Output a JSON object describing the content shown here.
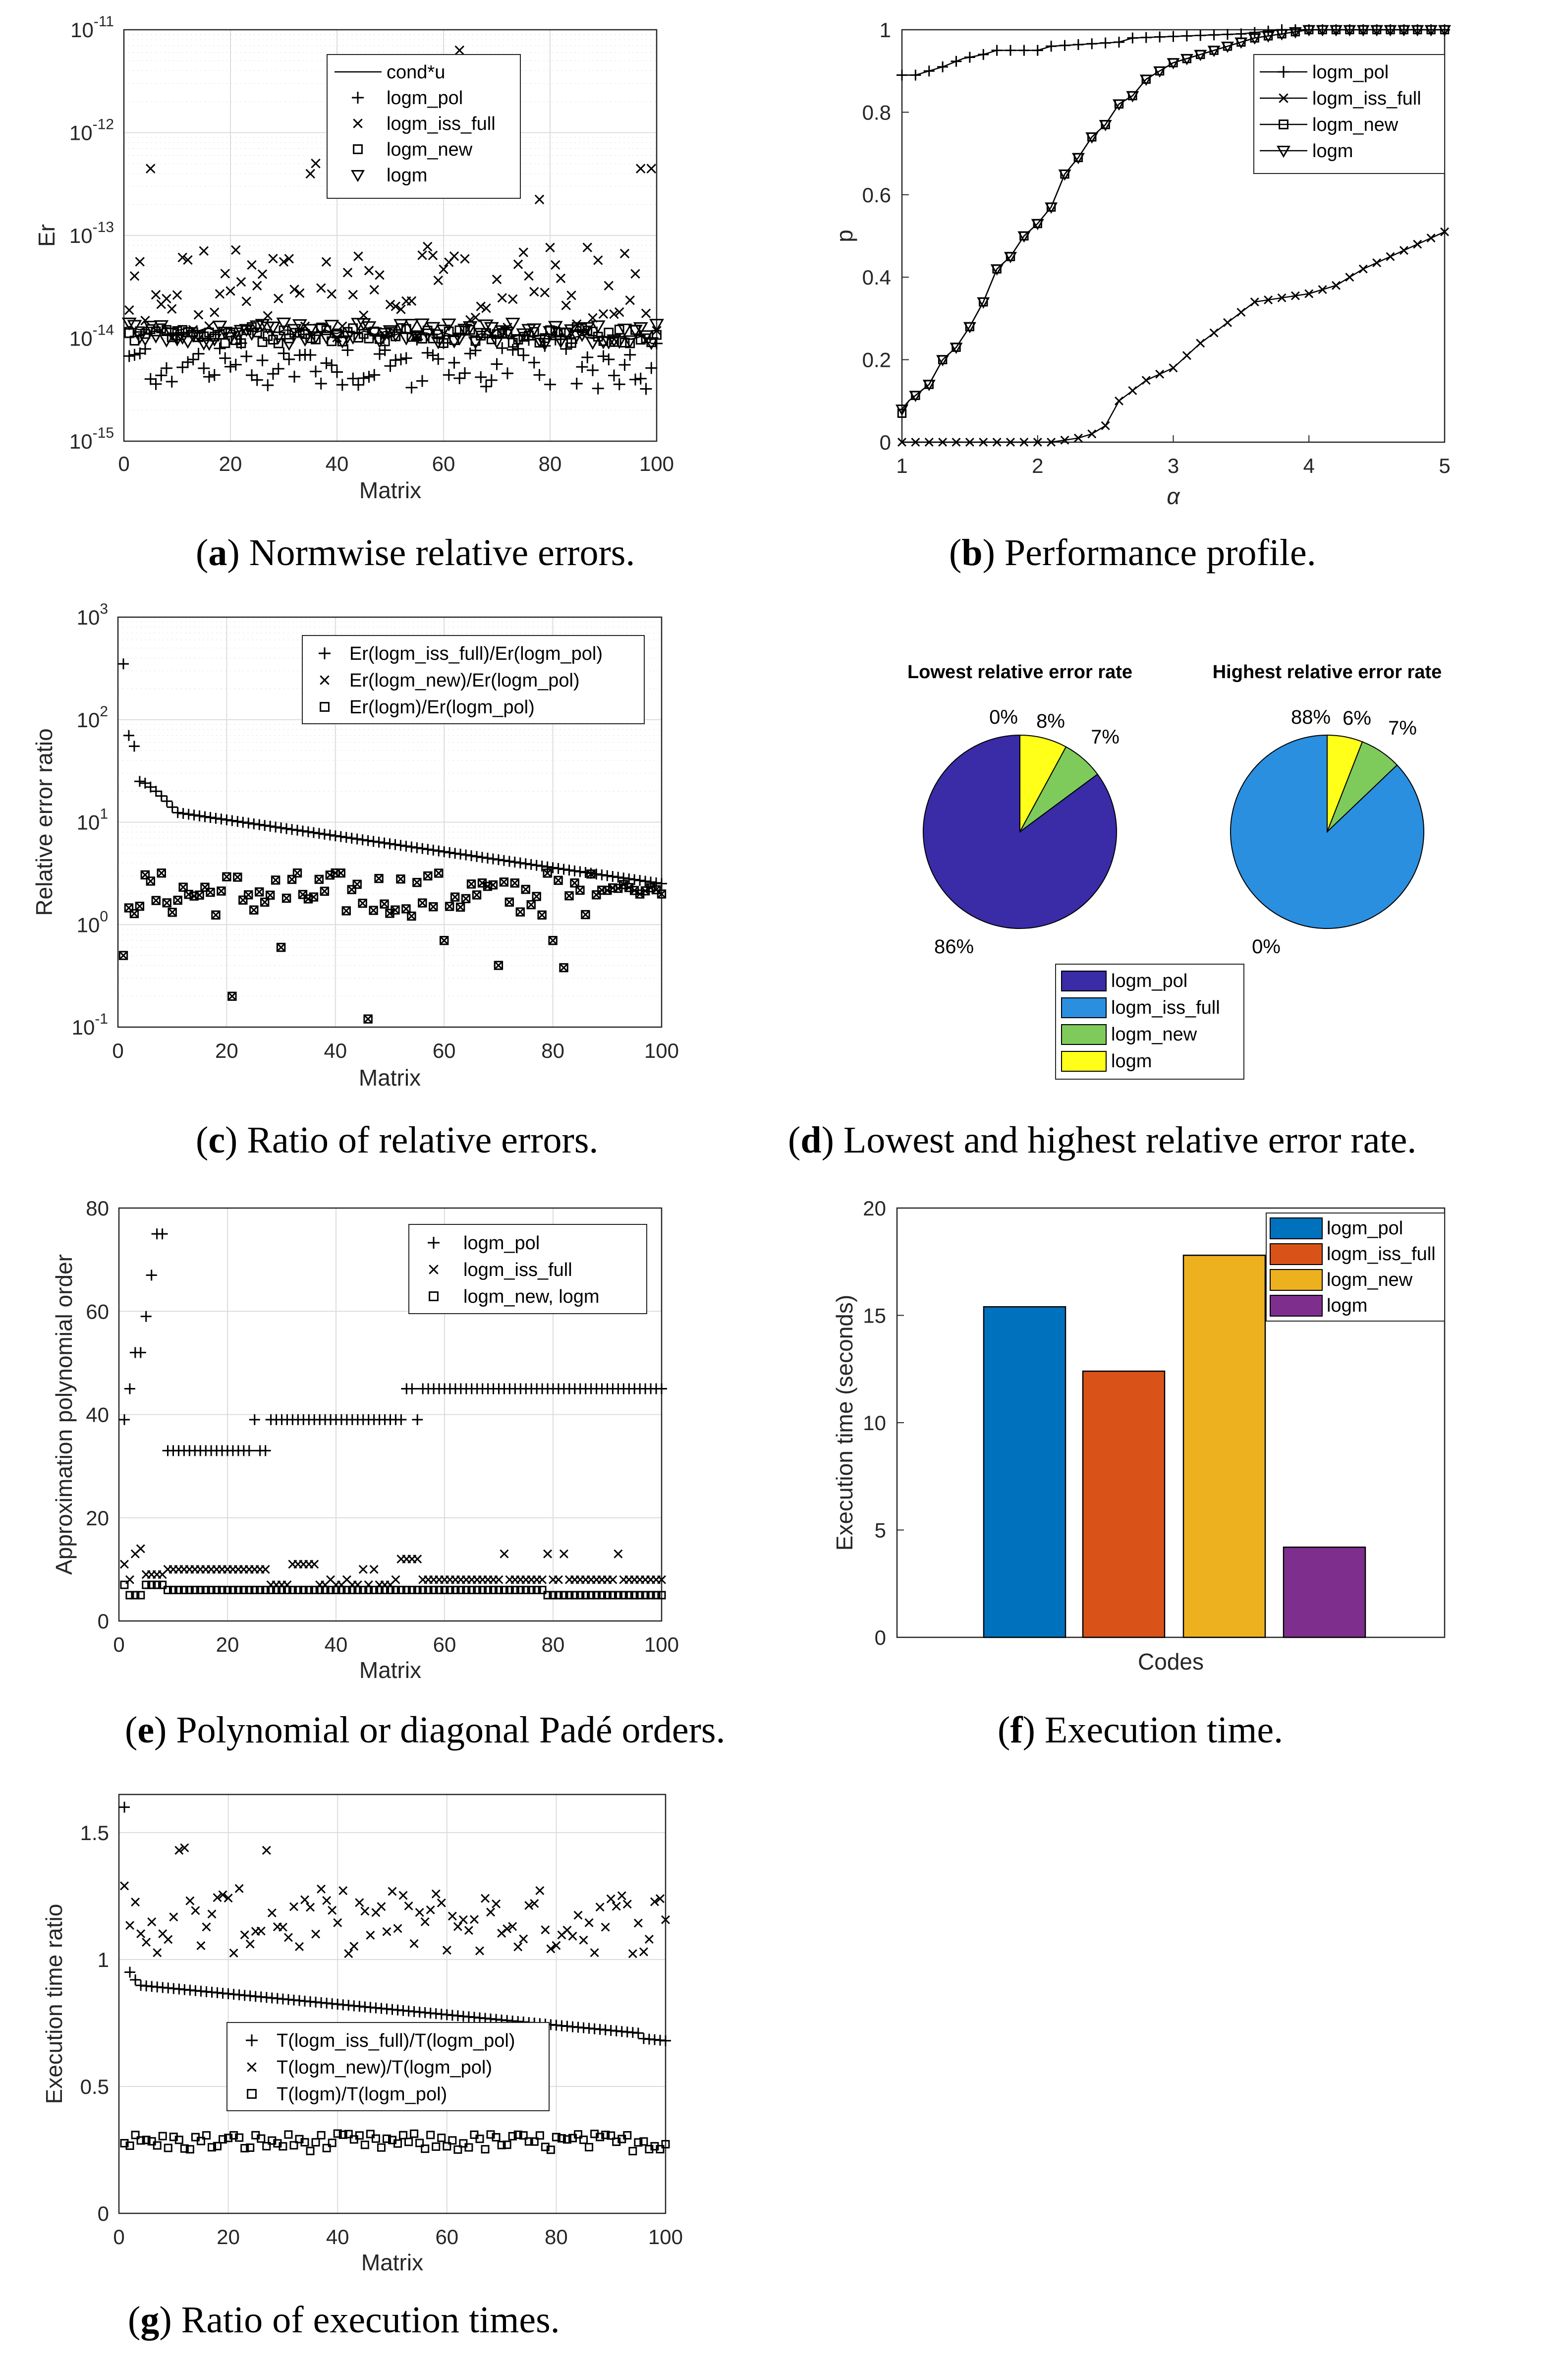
{
  "captions": [
    {
      "letter": "a",
      "text": ") Normwise relative errors."
    },
    {
      "letter": "b",
      "text": ") Performance profile."
    },
    {
      "letter": "c",
      "text": ") Ratio of relative errors."
    },
    {
      "letter": "d",
      "text": ") Lowest and highest relative error rate."
    },
    {
      "letter": "e",
      "text": ") Polynomial or diagonal Padé orders."
    },
    {
      "letter": "f",
      "text": ") Execution time."
    },
    {
      "letter": "g",
      "text": ") Ratio of execution times."
    }
  ],
  "chart_data": [
    {
      "id": "a",
      "type": "scatter",
      "xlabel": "Matrix",
      "ylabel": "Er",
      "xlim": [
        0,
        100
      ],
      "ylim_log10": [
        -15,
        -11
      ],
      "xticks": [
        "0",
        "20",
        "40",
        "60",
        "80",
        "100"
      ],
      "yticks_exp": [
        "-15",
        "-14",
        "-13",
        "-12",
        "-11"
      ],
      "legend": [
        "cond*u",
        "logm_pol",
        "logm_iss_full",
        "logm_new",
        "logm"
      ],
      "series": [
        {
          "name": "cond*u",
          "marker": "line",
          "log10_level_start": -13.9,
          "log10_level_end": -14.0,
          "log10_spread": 0.05
        },
        {
          "name": "logm_pol",
          "marker": "+",
          "log10_level": -14.25,
          "log10_spread": 0.25
        },
        {
          "name": "logm_iss_full",
          "marker": "x",
          "log10_level": -13.55,
          "log10_spread": 0.45,
          "outliers": [
            {
              "x": 5,
              "log10": -12.35
            },
            {
              "x": 35,
              "log10": -12.4
            },
            {
              "x": 36,
              "log10": -12.3
            },
            {
              "x": 63,
              "log10": -11.2
            },
            {
              "x": 78,
              "log10": -12.65
            },
            {
              "x": 97,
              "log10": -12.35
            },
            {
              "x": 99,
              "log10": -12.35
            }
          ]
        },
        {
          "name": "logm_new",
          "marker": "square",
          "log10_level": -13.97,
          "log10_spread": 0.08
        },
        {
          "name": "logm",
          "marker": "triangle-down",
          "log10_level": -13.95,
          "log10_spread": 0.1
        }
      ]
    },
    {
      "id": "b",
      "type": "line",
      "xlabel": "α",
      "ylabel": "p",
      "xlim": [
        1,
        5
      ],
      "ylim": [
        0,
        1
      ],
      "xticks": [
        "1",
        "2",
        "3",
        "4",
        "5"
      ],
      "yticks": [
        "0",
        "0.2",
        "0.4",
        "0.6",
        "0.8",
        "1"
      ],
      "legend": [
        "logm_pol",
        "logm_iss_full",
        "logm_new",
        "logm"
      ],
      "series": [
        {
          "name": "logm_pol",
          "marker": "+",
          "points": [
            [
              1,
              0.89
            ],
            [
              1.1,
              0.89
            ],
            [
              1.2,
              0.9
            ],
            [
              1.3,
              0.91
            ],
            [
              1.45,
              0.93
            ],
            [
              1.6,
              0.94
            ],
            [
              1.7,
              0.95
            ],
            [
              2.0,
              0.95
            ],
            [
              2.1,
              0.96
            ],
            [
              2.6,
              0.97
            ],
            [
              2.7,
              0.98
            ],
            [
              3.5,
              0.99
            ],
            [
              3.8,
              1
            ],
            [
              5,
              1
            ]
          ]
        },
        {
          "name": "logm_iss_full",
          "marker": "x",
          "points": [
            [
              1,
              0
            ],
            [
              2.1,
              0
            ],
            [
              2.3,
              0.01
            ],
            [
              2.4,
              0.02
            ],
            [
              2.5,
              0.04
            ],
            [
              2.6,
              0.1
            ],
            [
              2.8,
              0.15
            ],
            [
              3.0,
              0.18
            ],
            [
              3.2,
              0.24
            ],
            [
              3.4,
              0.29
            ],
            [
              3.6,
              0.34
            ],
            [
              3.8,
              0.35
            ],
            [
              4.0,
              0.36
            ],
            [
              4.2,
              0.38
            ],
            [
              4.4,
              0.42
            ],
            [
              4.6,
              0.45
            ],
            [
              4.8,
              0.48
            ],
            [
              5.0,
              0.51
            ]
          ]
        },
        {
          "name": "logm_new",
          "marker": "square",
          "points": [
            [
              1,
              0.07
            ],
            [
              1.05,
              0.1
            ],
            [
              1.2,
              0.14
            ],
            [
              1.3,
              0.2
            ],
            [
              1.4,
              0.23
            ],
            [
              1.5,
              0.28
            ],
            [
              1.6,
              0.34
            ],
            [
              1.7,
              0.42
            ],
            [
              1.8,
              0.45
            ],
            [
              1.9,
              0.5
            ],
            [
              2.0,
              0.53
            ],
            [
              2.1,
              0.57
            ],
            [
              2.2,
              0.65
            ],
            [
              2.3,
              0.69
            ],
            [
              2.4,
              0.74
            ],
            [
              2.5,
              0.77
            ],
            [
              2.6,
              0.82
            ],
            [
              2.7,
              0.84
            ],
            [
              2.8,
              0.88
            ],
            [
              2.9,
              0.9
            ],
            [
              3.0,
              0.92
            ],
            [
              3.2,
              0.94
            ],
            [
              3.4,
              0.96
            ],
            [
              3.6,
              0.98
            ],
            [
              3.8,
              0.99
            ],
            [
              4.0,
              1
            ],
            [
              5,
              1
            ]
          ]
        },
        {
          "name": "logm",
          "marker": "triangle-down",
          "points": [
            [
              1,
              0.08
            ],
            [
              1.05,
              0.1
            ],
            [
              1.2,
              0.14
            ],
            [
              1.3,
              0.2
            ],
            [
              1.4,
              0.23
            ],
            [
              1.5,
              0.28
            ],
            [
              1.6,
              0.34
            ],
            [
              1.7,
              0.42
            ],
            [
              1.8,
              0.45
            ],
            [
              1.9,
              0.5
            ],
            [
              2.0,
              0.53
            ],
            [
              2.1,
              0.57
            ],
            [
              2.2,
              0.65
            ],
            [
              2.3,
              0.69
            ],
            [
              2.4,
              0.74
            ],
            [
              2.5,
              0.77
            ],
            [
              2.6,
              0.82
            ],
            [
              2.7,
              0.84
            ],
            [
              2.8,
              0.88
            ],
            [
              2.9,
              0.9
            ],
            [
              3.0,
              0.92
            ],
            [
              3.2,
              0.94
            ],
            [
              3.4,
              0.96
            ],
            [
              3.6,
              0.98
            ],
            [
              3.8,
              0.99
            ],
            [
              4.0,
              1
            ],
            [
              5,
              1
            ]
          ]
        }
      ]
    },
    {
      "id": "c",
      "type": "scatter",
      "xlabel": "Matrix",
      "ylabel": "Relative error ratio",
      "xlim": [
        0,
        100
      ],
      "ylim_log10": [
        -1,
        3
      ],
      "xticks": [
        "0",
        "20",
        "40",
        "60",
        "80",
        "100"
      ],
      "yticks_exp": [
        "-1",
        "0",
        "1",
        "2",
        "3"
      ],
      "legend": [
        "Er(logm_iss_full)/Er(logm_pol)",
        "Er(logm_new)/Er(logm_pol)",
        "Er(logm)/Er(logm_pol)"
      ],
      "series": [
        {
          "name": "Er(logm_iss_full)/Er(logm_pol)",
          "marker": "+",
          "first_values": [
            350,
            70,
            55,
            25,
            24,
            22,
            20,
            18,
            16,
            14
          ],
          "log10_tail_start": 1.1,
          "log10_tail_end": 0.4
        },
        {
          "name": "Er(logm_new)/Er(logm_pol)",
          "marker": "x",
          "log10_level": 0.3,
          "log10_spread": 0.22,
          "outliers": [
            {
              "x": 1,
              "value": 0.5
            },
            {
              "x": 21,
              "value": 0.2
            },
            {
              "x": 30,
              "value": 0.6
            },
            {
              "x": 46,
              "value": 0.12
            },
            {
              "x": 60,
              "value": 0.7
            },
            {
              "x": 70,
              "value": 0.4
            },
            {
              "x": 80,
              "value": 0.7
            },
            {
              "x": 82,
              "value": 0.38
            }
          ]
        },
        {
          "name": "Er(logm)/Er(logm_pol)",
          "marker": "square",
          "same_as": "Er(logm_new)/Er(logm_pol)"
        }
      ]
    },
    {
      "id": "d",
      "type": "pie",
      "legend": [
        "logm_pol",
        "logm_iss_full",
        "logm_new",
        "logm"
      ],
      "colors": [
        "#3a2ba6",
        "#2b8fe0",
        "#7ecb5c",
        "#ffff1a"
      ],
      "pies": [
        {
          "title": "Lowest relative error rate",
          "values": [
            86,
            0,
            7,
            8
          ],
          "labels": [
            "86%",
            "0%",
            "7%",
            "8%"
          ]
        },
        {
          "title": "Highest relative error rate",
          "values": [
            0,
            88,
            7,
            6
          ],
          "labels": [
            "0%",
            "88%",
            "7%",
            "6%"
          ]
        }
      ]
    },
    {
      "id": "e",
      "type": "scatter",
      "xlabel": "Matrix",
      "ylabel": "Approximation polynomial order",
      "xlim": [
        0,
        100
      ],
      "ylim": [
        0,
        80
      ],
      "xticks": [
        "0",
        "20",
        "40",
        "60",
        "80",
        "100"
      ],
      "yticks": [
        "0",
        "20",
        "40",
        "60",
        "80"
      ],
      "legend": [
        "logm_pol",
        "logm_iss_full",
        "logm_new, logm"
      ],
      "series": [
        {
          "name": "logm_pol",
          "marker": "+",
          "first_values": [
            39,
            45,
            52,
            52,
            59,
            67,
            75,
            75
          ],
          "segments": [
            {
              "from": 9,
              "to": 27,
              "value": 33
            },
            {
              "from": 25,
              "to": 25,
              "value": 39
            },
            {
              "from": 28,
              "to": 55,
              "value": 39
            },
            {
              "from": 53,
              "to": 100,
              "value": 45
            }
          ]
        },
        {
          "name": "logm_iss_full",
          "marker": "x",
          "first_values": [
            11,
            8,
            13,
            14,
            9,
            9,
            9,
            9
          ],
          "levels": [
            10,
            7,
            8,
            12
          ],
          "outliers": [
            {
              "x": 71,
              "value": 13
            },
            {
              "x": 79,
              "value": 13
            },
            {
              "x": 82,
              "value": 13
            },
            {
              "x": 92,
              "value": 13
            }
          ]
        },
        {
          "name": "logm_new, logm",
          "marker": "square",
          "first_values": [
            7,
            5,
            5,
            5,
            7,
            7,
            7,
            7
          ],
          "level": 6,
          "tail_level": 5
        }
      ]
    },
    {
      "id": "f",
      "type": "bar",
      "xlabel": "Codes",
      "ylabel": "Execution time (seconds)",
      "ylim": [
        0,
        20
      ],
      "yticks": [
        "0",
        "5",
        "10",
        "15",
        "20"
      ],
      "categories": [
        "logm_pol",
        "logm_iss_full",
        "logm_new",
        "logm"
      ],
      "values": [
        15.4,
        12.4,
        17.8,
        4.2
      ],
      "colors": [
        "#0072bd",
        "#d95319",
        "#edb120",
        "#7e2f8e"
      ]
    },
    {
      "id": "g",
      "type": "scatter",
      "xlabel": "Matrix",
      "ylabel": "Execution time ratio",
      "xlim": [
        0,
        100
      ],
      "ylim": [
        0,
        1.65
      ],
      "xticks": [
        "0",
        "20",
        "40",
        "60",
        "80",
        "100"
      ],
      "yticks": [
        "0",
        "0.5",
        "1",
        "1.5"
      ],
      "legend": [
        "T(logm_iss_full)/T(logm_pol)",
        "T(logm_new)/T(logm_pol)",
        "T(logm)/T(logm_pol)"
      ],
      "series": [
        {
          "name": "T(logm_iss_full)/T(logm_pol)",
          "marker": "+",
          "first_values": [
            1.6,
            0.95,
            0.92
          ],
          "tail_start": 0.9,
          "tail_end": 0.7
        },
        {
          "name": "T(logm_new)/T(logm_pol)",
          "marker": "x",
          "level": 1.15,
          "spread": 0.13
        },
        {
          "name": "T(logm)/T(logm_pol)",
          "marker": "square",
          "level": 0.28,
          "spread": 0.035
        }
      ]
    }
  ]
}
